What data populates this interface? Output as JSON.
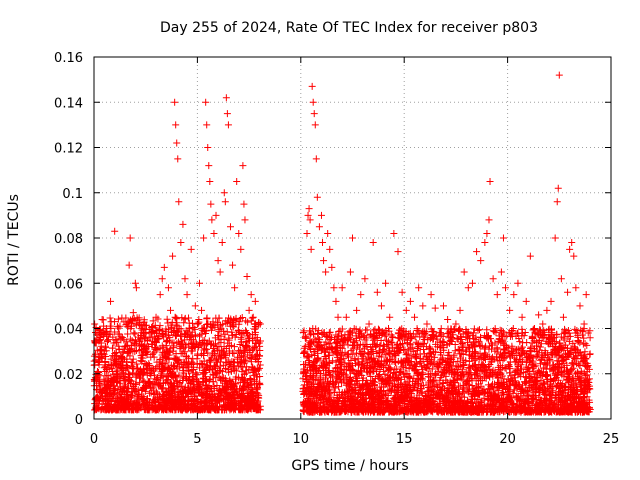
{
  "chart_data": {
    "type": "scatter",
    "title": "Day 255 of 2024, Rate Of TEC Index for receiver p803",
    "xlabel": "GPS time / hours",
    "ylabel": "ROTI / TECUs",
    "xlim": [
      0,
      25
    ],
    "ylim": [
      0,
      0.16
    ],
    "xticks": [
      0,
      5,
      10,
      15,
      20,
      25
    ],
    "xtick_labels": [
      "0",
      "5",
      "10",
      "15",
      "20",
      "25"
    ],
    "yticks": [
      0,
      0.02,
      0.04,
      0.06,
      0.08,
      0.1,
      0.12,
      0.14,
      0.16
    ],
    "ytick_labels": [
      "0",
      "0.02",
      "0.04",
      "0.06",
      "0.08",
      "0.1",
      "0.12",
      "0.14",
      "0.16"
    ],
    "grid": true,
    "marker": "+",
    "color": "#ff0000",
    "series": [
      {
        "name": "ROTI",
        "points": [
          [
            0.1,
            0.018
          ],
          [
            0.2,
            0.025
          ],
          [
            0.3,
            0.036
          ],
          [
            0.35,
            0.012
          ],
          [
            0.5,
            0.03
          ],
          [
            0.6,
            0.04
          ],
          [
            0.7,
            0.015
          ],
          [
            0.8,
            0.052
          ],
          [
            0.9,
            0.028
          ],
          [
            1.0,
            0.083
          ],
          [
            1.1,
            0.02
          ],
          [
            1.3,
            0.035
          ],
          [
            1.5,
            0.014
          ],
          [
            1.6,
            0.042
          ],
          [
            1.7,
            0.068
          ],
          [
            1.75,
            0.08
          ],
          [
            1.8,
            0.025
          ],
          [
            1.9,
            0.047
          ],
          [
            2.0,
            0.06
          ],
          [
            2.05,
            0.058
          ],
          [
            2.2,
            0.018
          ],
          [
            2.4,
            0.032
          ],
          [
            2.6,
            0.022
          ],
          [
            2.8,
            0.038
          ],
          [
            3.0,
            0.045
          ],
          [
            3.1,
            0.016
          ],
          [
            3.2,
            0.055
          ],
          [
            3.3,
            0.062
          ],
          [
            3.4,
            0.067
          ],
          [
            3.5,
            0.03
          ],
          [
            3.6,
            0.058
          ],
          [
            3.7,
            0.048
          ],
          [
            3.8,
            0.072
          ],
          [
            3.9,
            0.14
          ],
          [
            3.95,
            0.13
          ],
          [
            4.0,
            0.122
          ],
          [
            4.05,
            0.115
          ],
          [
            4.1,
            0.096
          ],
          [
            4.2,
            0.078
          ],
          [
            4.3,
            0.086
          ],
          [
            4.4,
            0.062
          ],
          [
            4.5,
            0.055
          ],
          [
            4.6,
            0.04
          ],
          [
            4.7,
            0.075
          ],
          [
            4.8,
            0.035
          ],
          [
            4.9,
            0.05
          ],
          [
            5.0,
            0.042
          ],
          [
            5.1,
            0.06
          ],
          [
            5.2,
            0.048
          ],
          [
            5.3,
            0.08
          ],
          [
            5.4,
            0.14
          ],
          [
            5.45,
            0.13
          ],
          [
            5.5,
            0.12
          ],
          [
            5.55,
            0.112
          ],
          [
            5.6,
            0.105
          ],
          [
            5.65,
            0.095
          ],
          [
            5.7,
            0.088
          ],
          [
            5.8,
            0.082
          ],
          [
            5.9,
            0.09
          ],
          [
            6.0,
            0.07
          ],
          [
            6.1,
            0.065
          ],
          [
            6.2,
            0.078
          ],
          [
            6.3,
            0.1
          ],
          [
            6.35,
            0.096
          ],
          [
            6.4,
            0.142
          ],
          [
            6.45,
            0.135
          ],
          [
            6.5,
            0.13
          ],
          [
            6.6,
            0.085
          ],
          [
            6.7,
            0.068
          ],
          [
            6.8,
            0.058
          ],
          [
            6.9,
            0.105
          ],
          [
            7.0,
            0.082
          ],
          [
            7.1,
            0.075
          ],
          [
            7.2,
            0.112
          ],
          [
            7.25,
            0.095
          ],
          [
            7.3,
            0.088
          ],
          [
            7.4,
            0.063
          ],
          [
            7.5,
            0.048
          ],
          [
            7.6,
            0.055
          ],
          [
            7.7,
            0.045
          ],
          [
            7.8,
            0.052
          ],
          [
            7.9,
            0.035
          ],
          [
            8.0,
            0.028
          ],
          [
            10.2,
            0.03
          ],
          [
            10.3,
            0.082
          ],
          [
            10.35,
            0.09
          ],
          [
            10.4,
            0.093
          ],
          [
            10.45,
            0.088
          ],
          [
            10.5,
            0.075
          ],
          [
            10.55,
            0.147
          ],
          [
            10.6,
            0.14
          ],
          [
            10.65,
            0.135
          ],
          [
            10.7,
            0.13
          ],
          [
            10.75,
            0.115
          ],
          [
            10.8,
            0.098
          ],
          [
            10.9,
            0.085
          ],
          [
            11.0,
            0.09
          ],
          [
            11.05,
            0.078
          ],
          [
            11.1,
            0.07
          ],
          [
            11.2,
            0.065
          ],
          [
            11.3,
            0.082
          ],
          [
            11.4,
            0.075
          ],
          [
            11.5,
            0.067
          ],
          [
            11.6,
            0.058
          ],
          [
            11.7,
            0.052
          ],
          [
            11.8,
            0.045
          ],
          [
            12.0,
            0.058
          ],
          [
            12.2,
            0.045
          ],
          [
            12.4,
            0.065
          ],
          [
            12.5,
            0.08
          ],
          [
            12.7,
            0.048
          ],
          [
            12.9,
            0.055
          ],
          [
            13.1,
            0.062
          ],
          [
            13.3,
            0.042
          ],
          [
            13.5,
            0.078
          ],
          [
            13.7,
            0.056
          ],
          [
            13.9,
            0.05
          ],
          [
            14.1,
            0.06
          ],
          [
            14.3,
            0.045
          ],
          [
            14.5,
            0.082
          ],
          [
            14.7,
            0.074
          ],
          [
            14.9,
            0.056
          ],
          [
            15.1,
            0.048
          ],
          [
            15.3,
            0.052
          ],
          [
            15.5,
            0.045
          ],
          [
            15.7,
            0.058
          ],
          [
            15.9,
            0.05
          ],
          [
            16.1,
            0.042
          ],
          [
            16.3,
            0.055
          ],
          [
            16.5,
            0.049
          ],
          [
            16.7,
            0.038
          ],
          [
            16.9,
            0.05
          ],
          [
            17.1,
            0.044
          ],
          [
            17.3,
            0.036
          ],
          [
            17.5,
            0.042
          ],
          [
            17.7,
            0.048
          ],
          [
            17.9,
            0.065
          ],
          [
            18.1,
            0.058
          ],
          [
            18.3,
            0.06
          ],
          [
            18.5,
            0.074
          ],
          [
            18.7,
            0.07
          ],
          [
            18.9,
            0.078
          ],
          [
            19.0,
            0.082
          ],
          [
            19.1,
            0.088
          ],
          [
            19.15,
            0.105
          ],
          [
            19.3,
            0.062
          ],
          [
            19.5,
            0.055
          ],
          [
            19.7,
            0.065
          ],
          [
            19.8,
            0.08
          ],
          [
            19.9,
            0.058
          ],
          [
            20.1,
            0.048
          ],
          [
            20.3,
            0.055
          ],
          [
            20.5,
            0.06
          ],
          [
            20.7,
            0.045
          ],
          [
            20.9,
            0.052
          ],
          [
            21.1,
            0.072
          ],
          [
            21.3,
            0.04
          ],
          [
            21.5,
            0.046
          ],
          [
            21.7,
            0.042
          ],
          [
            21.9,
            0.048
          ],
          [
            22.1,
            0.052
          ],
          [
            22.3,
            0.08
          ],
          [
            22.4,
            0.096
          ],
          [
            22.45,
            0.102
          ],
          [
            22.5,
            0.152
          ],
          [
            22.6,
            0.062
          ],
          [
            22.7,
            0.045
          ],
          [
            22.9,
            0.056
          ],
          [
            23.0,
            0.075
          ],
          [
            23.1,
            0.078
          ],
          [
            23.2,
            0.072
          ],
          [
            23.3,
            0.058
          ],
          [
            23.5,
            0.05
          ],
          [
            23.7,
            0.042
          ],
          [
            23.8,
            0.055
          ],
          [
            23.9,
            0.038
          ]
        ],
        "band": {
          "description": "Dense cluster of low values",
          "segments": [
            {
              "x_range": [
                0.0,
                8.05
              ],
              "typical_range": [
                0.004,
                0.045
              ]
            },
            {
              "x_range": [
                10.1,
                24.0
              ],
              "typical_range": [
                0.003,
                0.04
              ]
            }
          ]
        }
      }
    ]
  }
}
